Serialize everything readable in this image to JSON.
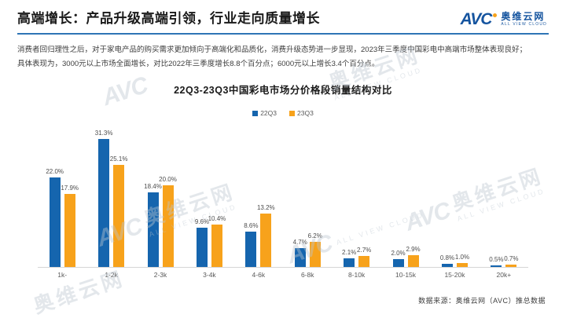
{
  "header": {
    "title": "高端增长：产品升级高端引领，行业走向质量增长",
    "logo": {
      "avc": "AVC",
      "cn": "奥维云网",
      "en": "ALL VIEW CLOUD"
    }
  },
  "intro": {
    "line1": "消费者回归理性之后，对于家电产品的购买需求更加倾向于高端化和品质化，消费升级态势进一步显现，2023年三季度中国彩电中高端市场整体表现良好；",
    "line2": "具体表现为，3000元以上市场全面增长，对比2022年三季度增长8.8个百分点；6000元以上增长3.4个百分点。"
  },
  "chart_data": {
    "type": "bar",
    "title": "22Q3-23Q3中国彩电市场分价格段销量结构对比",
    "categories": [
      "1k-",
      "1-2k",
      "2-3k",
      "3-4k",
      "4-6k",
      "6-8k",
      "8-10k",
      "10-15k",
      "15-20k",
      "20k+"
    ],
    "series": [
      {
        "name": "22Q3",
        "color": "#1565ae",
        "values": [
          22.0,
          31.3,
          18.4,
          9.6,
          8.6,
          4.7,
          2.1,
          2.0,
          0.8,
          0.5
        ]
      },
      {
        "name": "23Q3",
        "color": "#f7a21b",
        "values": [
          17.9,
          25.1,
          20.0,
          10.4,
          13.2,
          6.2,
          2.7,
          2.9,
          1.0,
          0.7
        ]
      }
    ],
    "value_suffix": "%",
    "value_decimals": 1,
    "xlabel": "",
    "ylabel": "",
    "ylim": [
      0,
      35
    ],
    "grid": false,
    "legend_position": "top",
    "data_labels": true
  },
  "footer": {
    "source": "数据来源：奥维云网（AVC）推总数据"
  },
  "watermark": {
    "logo": "AVC",
    "cn": "奥维云网",
    "en": "ALL VIEW CLOUD"
  },
  "colors": {
    "series_22q3": "#1565ae",
    "series_23q3": "#f7a21b",
    "header_rule": "#2e75b6",
    "logo_blue": "#15549f",
    "logo_dot_orange": "#f7a21b"
  }
}
